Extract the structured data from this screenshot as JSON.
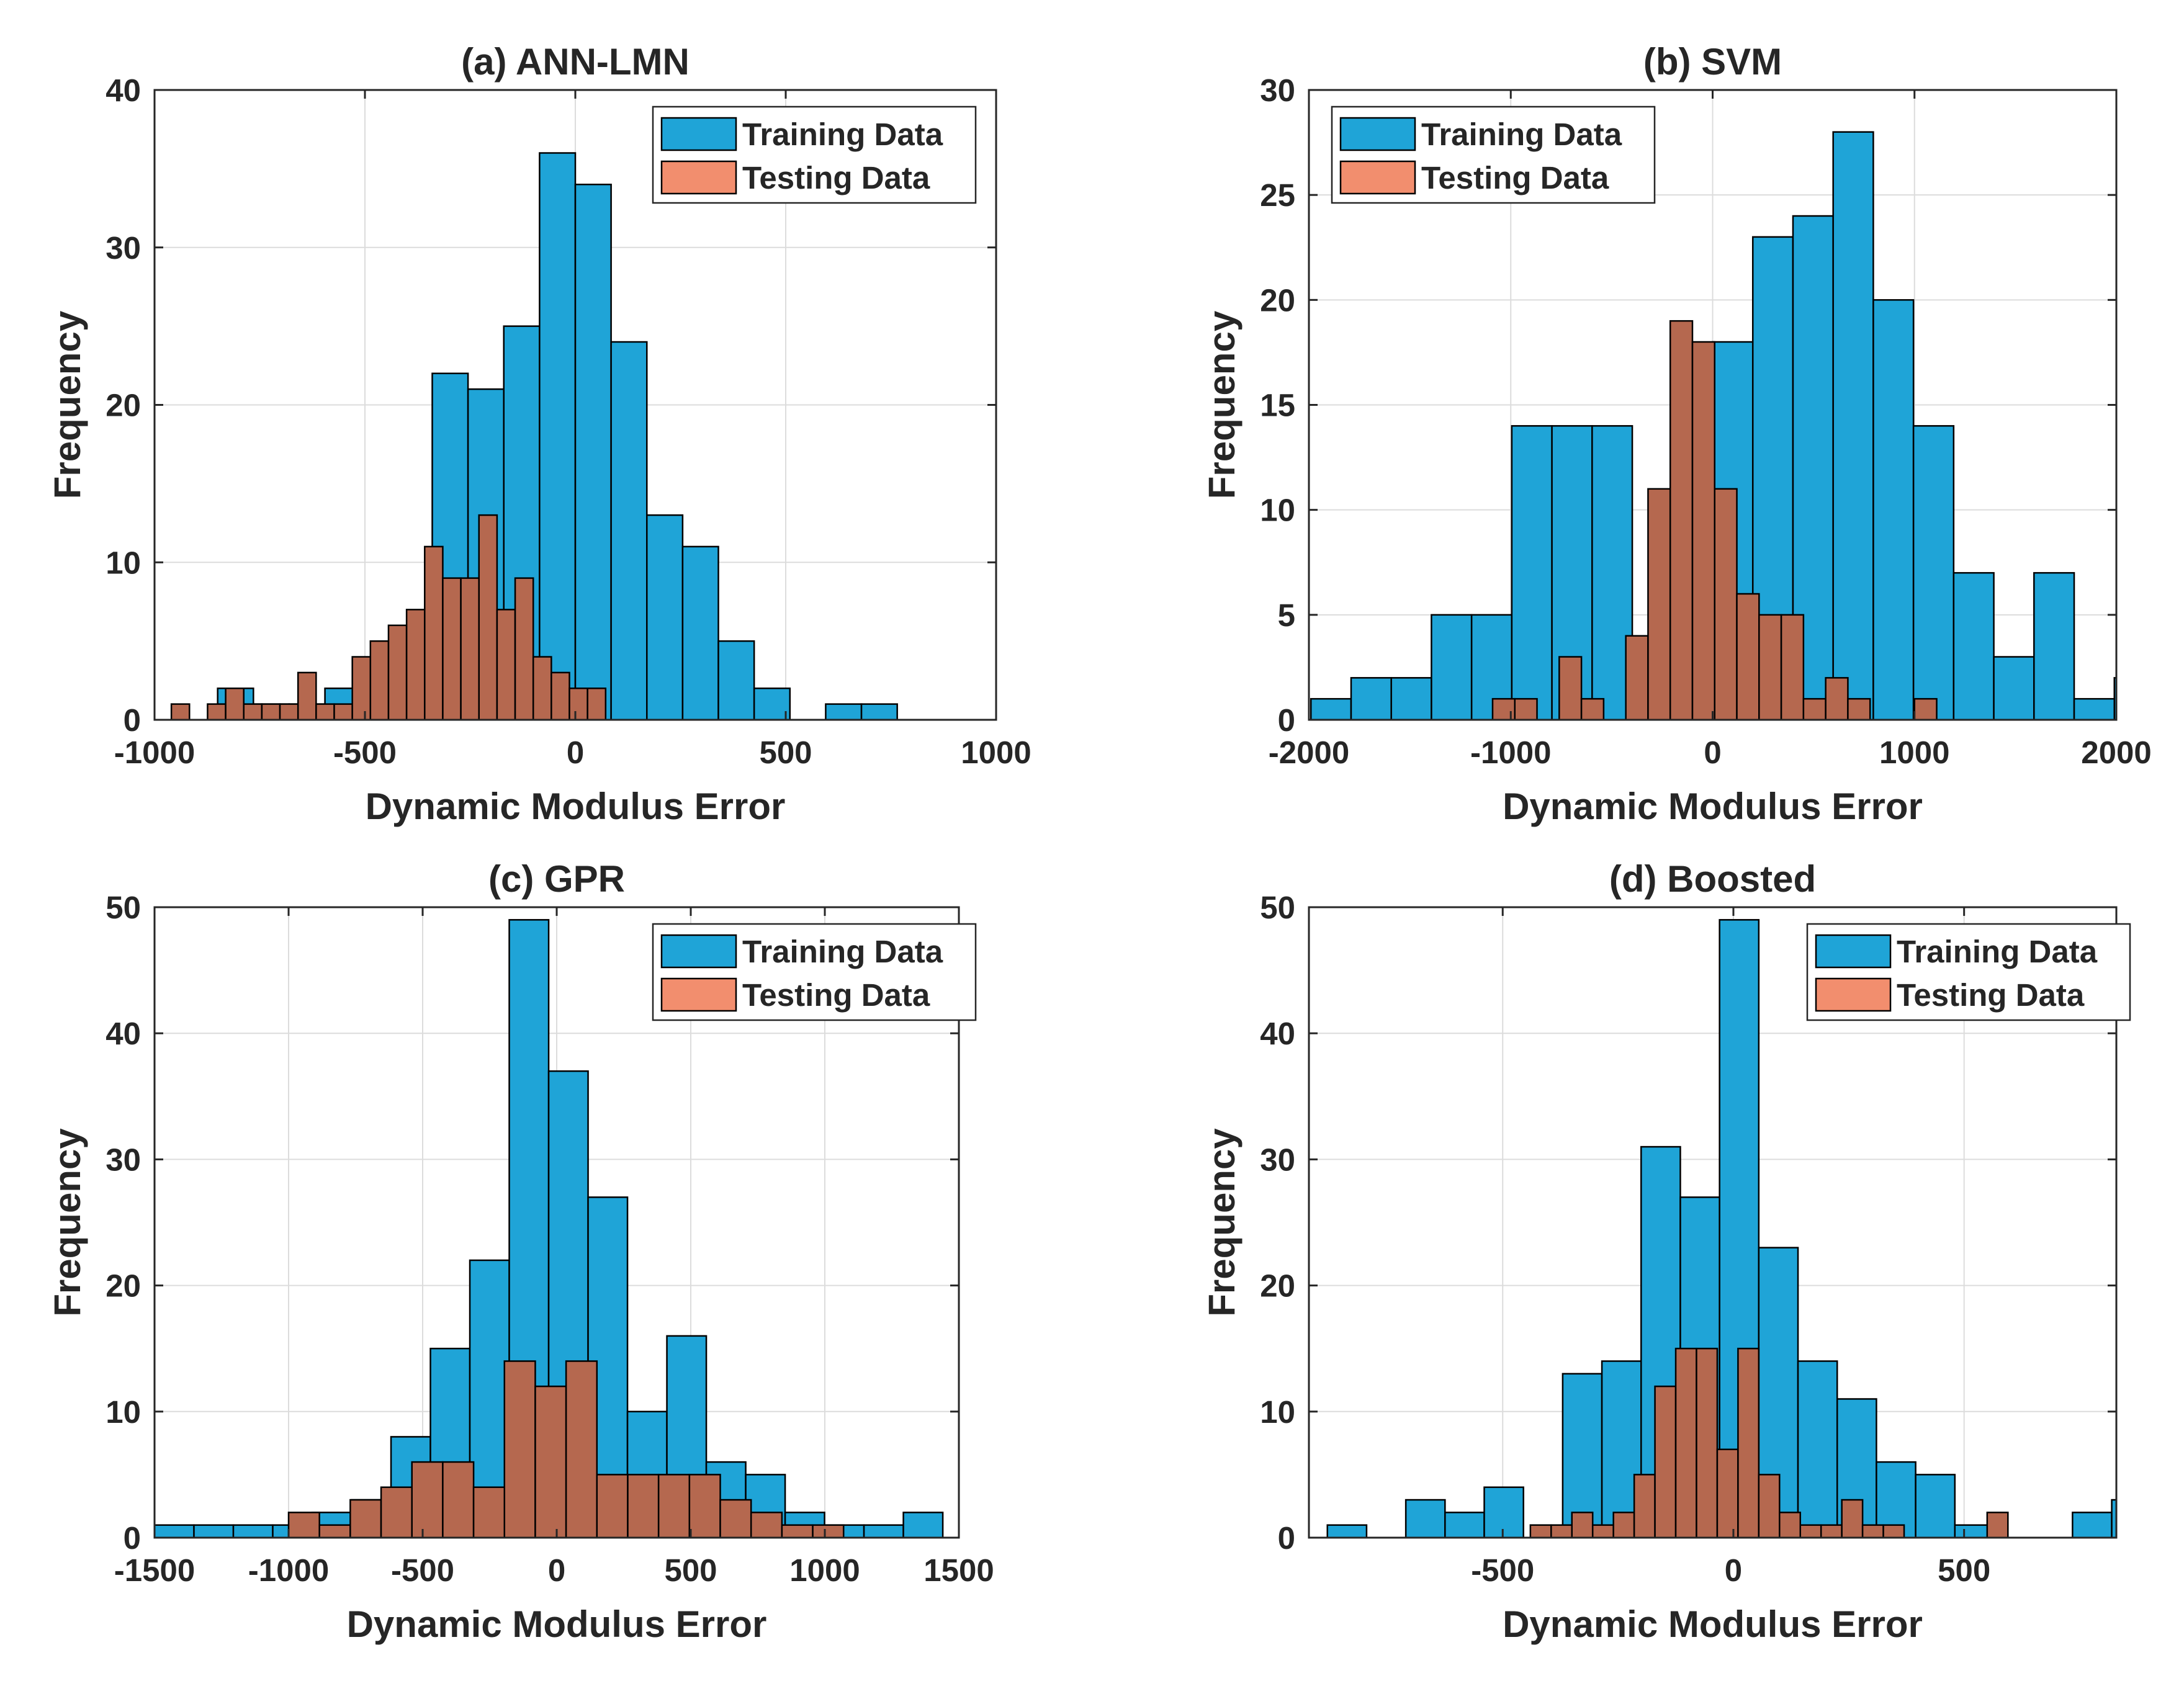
{
  "colors": {
    "training": "#1FA4D7",
    "testing": "#F28E6E",
    "testing_overlap": "#B5684F"
  },
  "legend": {
    "training": "Training Data",
    "testing": "Testing Data"
  },
  "chart_data": [
    {
      "id": "a",
      "type": "bar",
      "title": "(a) ANN-LMN",
      "xlabel": "Dynamic Modulus Error",
      "ylabel": "Frequency",
      "xlim": [
        -1000,
        1000
      ],
      "ylim": [
        0,
        40
      ],
      "xticks": [
        -1000,
        -500,
        0,
        500,
        1000
      ],
      "yticks": [
        0,
        10,
        20,
        30,
        40
      ],
      "training": {
        "edges_start": -850,
        "bin_width": 85,
        "counts": [
          2,
          1,
          1,
          2,
          3,
          6,
          22,
          21,
          25,
          36,
          34,
          24,
          13,
          11,
          5,
          2,
          0,
          1,
          1
        ]
      },
      "testing": {
        "edges_start": -960,
        "bin_width": 43,
        "counts": [
          1,
          0,
          1,
          2,
          1,
          1,
          1,
          3,
          1,
          1,
          4,
          5,
          6,
          7,
          11,
          9,
          9,
          13,
          7,
          9,
          4,
          3,
          2,
          2
        ]
      }
    },
    {
      "id": "b",
      "type": "bar",
      "title": "(b) SVM",
      "xlabel": "Dynamic Modulus Error",
      "ylabel": "Frequency",
      "xlim": [
        -2000,
        2000
      ],
      "ylim": [
        0,
        30
      ],
      "xticks": [
        -2000,
        -1000,
        0,
        1000,
        2000
      ],
      "yticks": [
        0,
        5,
        10,
        15,
        20,
        25,
        30
      ],
      "training": {
        "edges_start": -1990,
        "bin_width": 199,
        "counts": [
          1,
          2,
          2,
          5,
          5,
          14,
          14,
          14,
          0,
          5,
          18,
          23,
          24,
          28,
          20,
          14,
          7,
          3,
          7,
          1,
          2
        ]
      },
      "testing": {
        "edges_start": -1090,
        "bin_width": 110,
        "counts": [
          1,
          1,
          0,
          3,
          1,
          0,
          4,
          11,
          19,
          18,
          11,
          6,
          5,
          5,
          1,
          2,
          1,
          0,
          0,
          1
        ]
      }
    },
    {
      "id": "c",
      "type": "bar",
      "title": "(c) GPR",
      "xlabel": "Dynamic Modulus Error",
      "ylabel": "Frequency",
      "xlim": [
        -1500,
        1500
      ],
      "ylim": [
        0,
        50
      ],
      "xticks": [
        -1500,
        -1000,
        -500,
        0,
        500,
        1000,
        1500
      ],
      "yticks": [
        0,
        10,
        20,
        30,
        40,
        50
      ],
      "training": {
        "edges_start": -1500,
        "bin_width": 147,
        "counts": [
          1,
          1,
          1,
          1,
          2,
          3,
          8,
          15,
          22,
          49,
          37,
          27,
          10,
          16,
          6,
          5,
          2,
          1,
          1,
          2
        ]
      },
      "testing": {
        "edges_start": -1000,
        "bin_width": 115,
        "counts": [
          2,
          1,
          3,
          4,
          6,
          6,
          4,
          14,
          12,
          14,
          5,
          5,
          5,
          5,
          3,
          2,
          1,
          1
        ]
      }
    },
    {
      "id": "d",
      "type": "bar",
      "title": "(d) Boosted",
      "xlabel": "Dynamic Modulus Error",
      "ylabel": "Frequency",
      "xlim": [
        -920,
        830
      ],
      "ylim": [
        0,
        50
      ],
      "xticks": [
        -500,
        0,
        500
      ],
      "yticks": [
        0,
        10,
        20,
        30,
        40,
        50
      ],
      "training": {
        "edges_start": -880,
        "bin_width": 85,
        "counts": [
          1,
          0,
          3,
          2,
          4,
          0,
          13,
          14,
          31,
          27,
          49,
          23,
          14,
          11,
          6,
          5,
          1,
          0,
          0,
          2,
          3
        ]
      },
      "testing": {
        "edges_start": -440,
        "bin_width": 45,
        "counts": [
          1,
          1,
          2,
          1,
          2,
          5,
          12,
          15,
          15,
          7,
          15,
          5,
          2,
          1,
          1,
          3,
          1,
          1,
          0,
          0,
          0,
          0,
          2
        ]
      }
    }
  ]
}
